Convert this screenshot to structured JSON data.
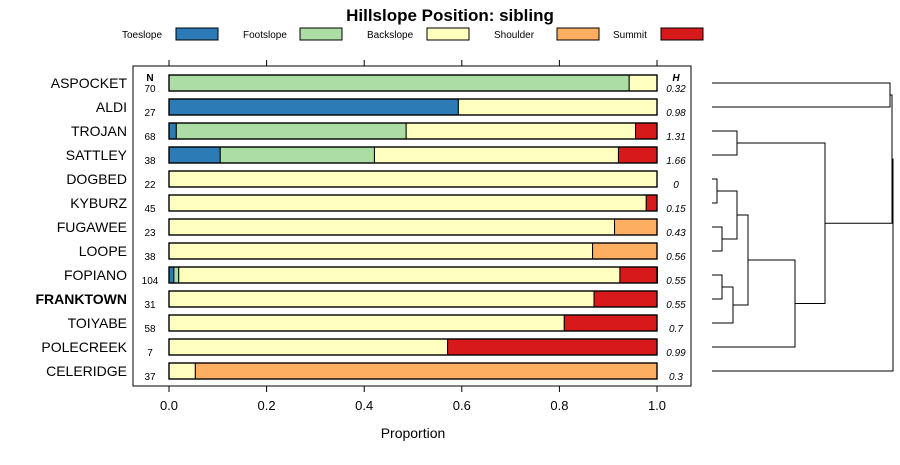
{
  "chart_data": {
    "type": "bar",
    "orientation": "horizontal",
    "stacked": true,
    "title": "Hillslope Position: sibling",
    "xlabel": "Proportion",
    "ylabel": "",
    "xlim": [
      0,
      1
    ],
    "x_ticks": [
      "0.0",
      "0.2",
      "0.4",
      "0.6",
      "0.8",
      "1.0"
    ],
    "n_header": "N",
    "h_header": "H",
    "legend_position": "top",
    "highlighted_category": "FRANKTOWN",
    "legend": [
      {
        "name": "Toeslope",
        "color": "#2c7bb6"
      },
      {
        "name": "Footslope",
        "color": "#abdda4"
      },
      {
        "name": "Backslope",
        "color": "#ffffbf"
      },
      {
        "name": "Shoulder",
        "color": "#fdae61"
      },
      {
        "name": "Summit",
        "color": "#d7191c"
      }
    ],
    "categories": [
      "ASPOCKET",
      "ALDI",
      "TROJAN",
      "SATTLEY",
      "DOGBED",
      "KYBURZ",
      "FUGAWEE",
      "LOOPE",
      "FOPIANO",
      "FRANKTOWN",
      "TOIYABE",
      "POLECREEK",
      "CELERIDGE"
    ],
    "n": [
      "70",
      "27",
      "68",
      "38",
      "22",
      "45",
      "23",
      "38",
      "104",
      "31",
      "58",
      "7",
      "37"
    ],
    "h": [
      "0.32",
      "0.98",
      "1.31",
      "1.66",
      "0",
      "0.15",
      "0.43",
      "0.56",
      "0.55",
      "0.55",
      "0.7",
      "0.99",
      "0.3"
    ],
    "series": [
      {
        "name": "Toeslope",
        "values": [
          0,
          0.593,
          0.015,
          0.105,
          0,
          0,
          0,
          0,
          0.01,
          0,
          0,
          0,
          0
        ]
      },
      {
        "name": "Footslope",
        "values": [
          0.943,
          0,
          0.471,
          0.316,
          0,
          0,
          0,
          0,
          0.01,
          0,
          0,
          0,
          0
        ]
      },
      {
        "name": "Backslope",
        "values": [
          0.057,
          0.407,
          0.47,
          0.5,
          1.0,
          0.978,
          0.913,
          0.868,
          0.904,
          0.871,
          0.81,
          0.571,
          0.054
        ]
      },
      {
        "name": "Shoulder",
        "values": [
          0,
          0,
          0,
          0,
          0,
          0,
          0.087,
          0.132,
          0,
          0,
          0,
          0,
          0.946
        ]
      },
      {
        "name": "Summit",
        "values": [
          0,
          0,
          0.044,
          0.079,
          0,
          0.022,
          0,
          0,
          0.077,
          0.129,
          0.19,
          0.429,
          0
        ]
      }
    ],
    "dendrogram": "hierarchical clustering of categories (right side)"
  }
}
